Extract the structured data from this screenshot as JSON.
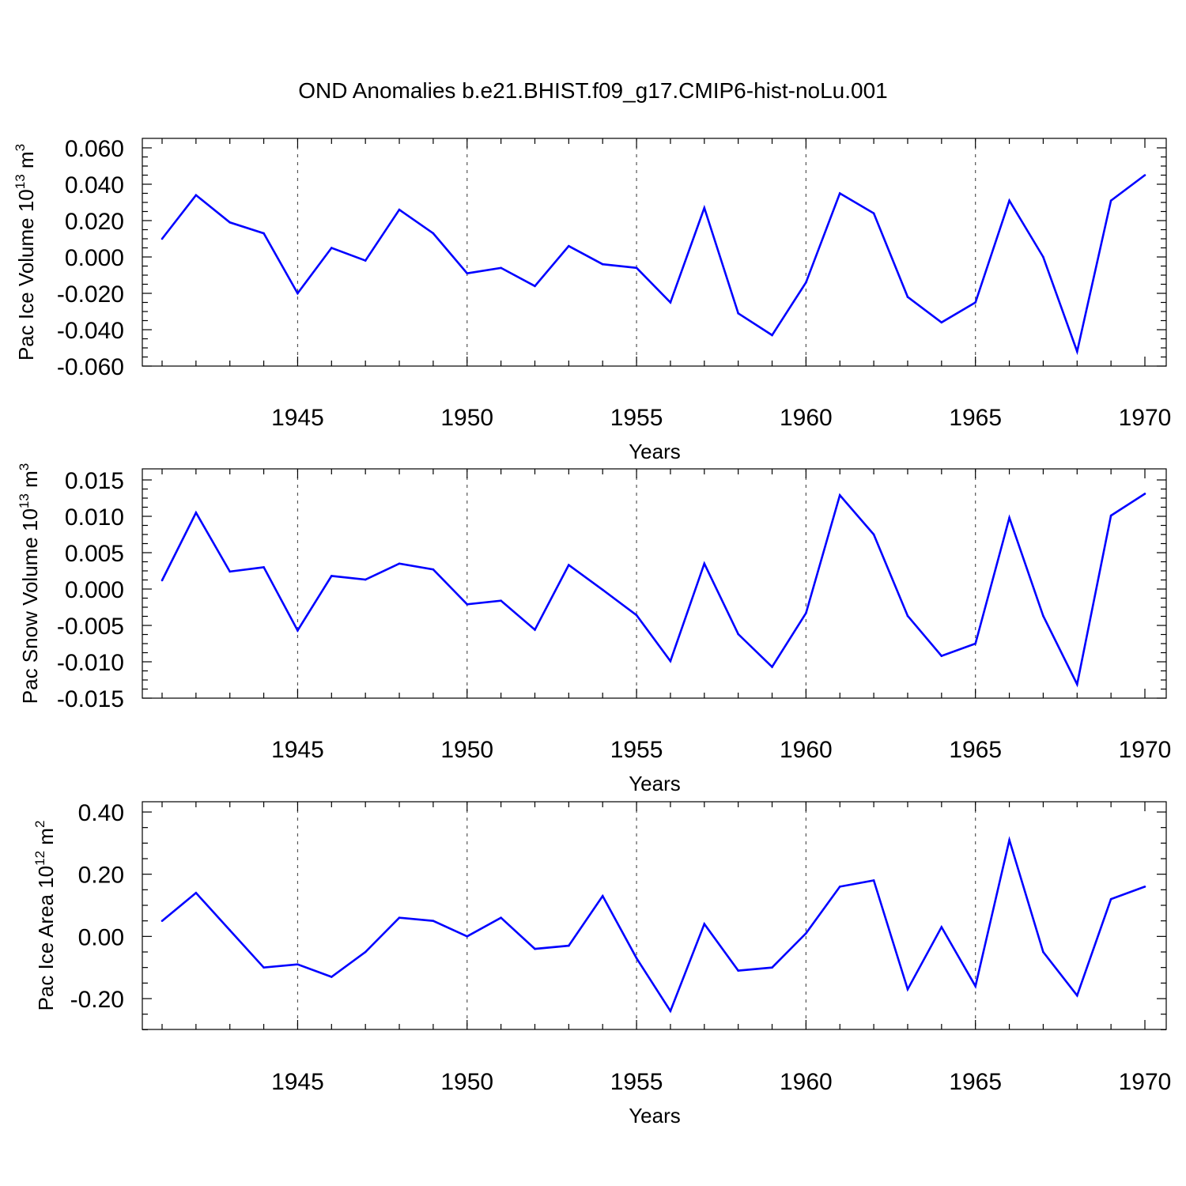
{
  "figure": {
    "title": "OND Anomalies b.e21.BHIST.f09_g17.CMIP6-hist-noLu.001"
  },
  "chart_data": [
    {
      "type": "line",
      "title": "",
      "xlabel": "Years",
      "ylabel": {
        "prefix": "Pac Ice Volume 10",
        "exponent": "13",
        "unit": " m",
        "unit_exponent": "3"
      },
      "xlim": [
        1941,
        1970
      ],
      "ylim": [
        -0.06,
        0.06
      ],
      "x_ticks": [
        "1945",
        "1950",
        "1955",
        "1960",
        "1965",
        "1970"
      ],
      "y_ticks": [
        "-0.060",
        "-0.040",
        "-0.020",
        "0.000",
        "0.020",
        "0.040",
        "0.060"
      ],
      "grid": "dashed vertical at 5-year ticks",
      "series": [
        {
          "name": "Pac Ice Volume",
          "color": "#0000ff",
          "x": [
            1941,
            1942,
            1943,
            1944,
            1945,
            1946,
            1947,
            1948,
            1949,
            1950,
            1951,
            1952,
            1953,
            1954,
            1955,
            1956,
            1957,
            1958,
            1959,
            1960,
            1961,
            1962,
            1963,
            1964,
            1965,
            1966,
            1967,
            1968,
            1969,
            1970
          ],
          "values": [
            0.01,
            0.034,
            0.019,
            0.013,
            -0.02,
            0.005,
            -0.002,
            0.026,
            0.013,
            -0.009,
            -0.006,
            -0.016,
            0.006,
            -0.004,
            -0.006,
            -0.025,
            0.027,
            -0.031,
            -0.043,
            -0.014,
            0.035,
            0.024,
            -0.022,
            -0.036,
            -0.025,
            0.031,
            0.0,
            -0.052,
            0.031,
            0.045
          ]
        }
      ]
    },
    {
      "type": "line",
      "title": "",
      "xlabel": "Years",
      "ylabel": {
        "prefix": "Pac Snow Volume 10",
        "exponent": "13",
        "unit": " m",
        "unit_exponent": "3"
      },
      "xlim": [
        1941,
        1970
      ],
      "ylim": [
        -0.015,
        0.015
      ],
      "x_ticks": [
        "1945",
        "1950",
        "1955",
        "1960",
        "1965",
        "1970"
      ],
      "y_ticks": [
        "-0.015",
        "-0.010",
        "-0.005",
        "0.000",
        "0.005",
        "0.010",
        "0.015"
      ],
      "grid": "dashed vertical at 5-year ticks",
      "series": [
        {
          "name": "Pac Snow Volume",
          "color": "#0000ff",
          "x": [
            1941,
            1942,
            1943,
            1944,
            1945,
            1946,
            1947,
            1948,
            1949,
            1950,
            1951,
            1952,
            1953,
            1954,
            1955,
            1956,
            1957,
            1958,
            1959,
            1960,
            1961,
            1962,
            1963,
            1964,
            1965,
            1966,
            1967,
            1968,
            1969,
            1970
          ],
          "values": [
            0.0012,
            0.0105,
            0.0024,
            0.003,
            -0.0057,
            0.0018,
            0.0013,
            0.0035,
            0.0027,
            -0.0021,
            -0.0016,
            -0.0056,
            0.0033,
            -0.0001,
            -0.0036,
            -0.0099,
            0.0035,
            -0.0062,
            -0.0107,
            -0.0033,
            0.0129,
            0.0075,
            -0.0037,
            -0.0092,
            -0.0075,
            0.0098,
            -0.0037,
            -0.0131,
            0.0101,
            0.0131
          ]
        }
      ]
    },
    {
      "type": "line",
      "title": "",
      "xlabel": "Years",
      "ylabel": {
        "prefix": "Pac Ice Area 10",
        "exponent": "12",
        "unit": " m",
        "unit_exponent": "2"
      },
      "xlim": [
        1941,
        1970
      ],
      "ylim": [
        -0.3,
        0.4
      ],
      "x_ticks": [
        "1945",
        "1950",
        "1955",
        "1960",
        "1965",
        "1970"
      ],
      "y_ticks": [
        "-0.20",
        "0.00",
        "0.20",
        "0.40"
      ],
      "grid": "dashed vertical at 5-year ticks",
      "series": [
        {
          "name": "Pac Ice Area",
          "color": "#0000ff",
          "x": [
            1941,
            1942,
            1943,
            1944,
            1945,
            1946,
            1947,
            1948,
            1949,
            1950,
            1951,
            1952,
            1953,
            1954,
            1955,
            1956,
            1957,
            1958,
            1959,
            1960,
            1961,
            1962,
            1963,
            1964,
            1965,
            1966,
            1967,
            1968,
            1969,
            1970
          ],
          "values": [
            0.05,
            0.14,
            0.02,
            -0.1,
            -0.09,
            -0.13,
            -0.05,
            0.06,
            0.05,
            0.0,
            0.06,
            -0.04,
            -0.03,
            0.13,
            -0.07,
            -0.24,
            0.04,
            -0.11,
            -0.1,
            0.01,
            0.16,
            0.18,
            -0.17,
            0.03,
            -0.16,
            0.31,
            -0.05,
            -0.19,
            0.12,
            0.16
          ]
        }
      ]
    }
  ]
}
